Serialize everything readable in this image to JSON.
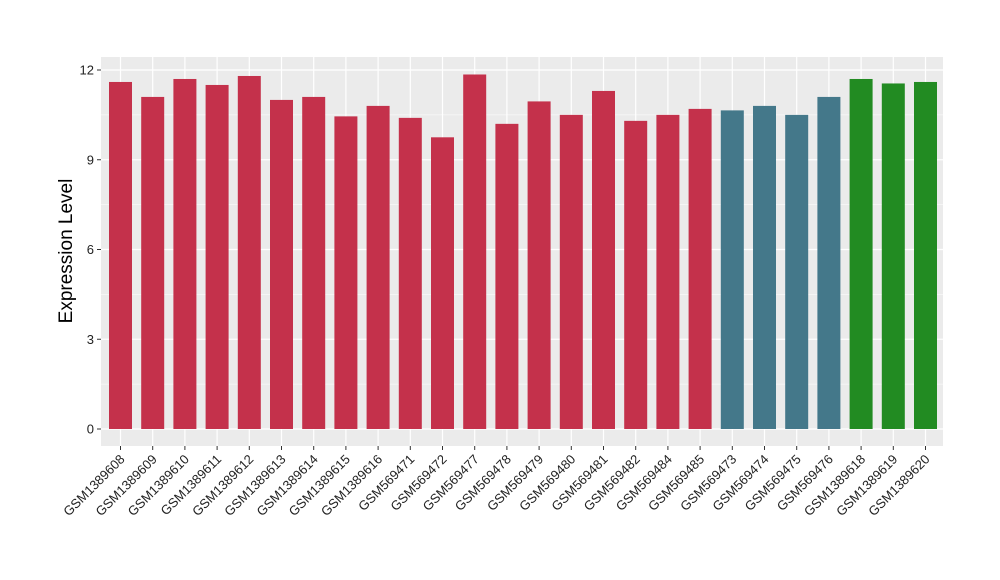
{
  "chart_data": {
    "type": "bar",
    "title": "",
    "xlabel": "",
    "ylabel": "Expression Level",
    "ylim": [
      0,
      12.6
    ],
    "yticks": [
      0,
      3,
      6,
      9,
      12
    ],
    "grid": true,
    "legend": "none",
    "categories": [
      "GSM1389608",
      "GSM1389609",
      "GSM1389610",
      "GSM1389611",
      "GSM1389612",
      "GSM1389613",
      "GSM1389614",
      "GSM1389615",
      "GSM1389616",
      "GSM569471",
      "GSM569472",
      "GSM569477",
      "GSM569478",
      "GSM569479",
      "GSM569480",
      "GSM569481",
      "GSM569482",
      "GSM569484",
      "GSM569485",
      "GSM569473",
      "GSM569474",
      "GSM569475",
      "GSM569476",
      "GSM1389618",
      "GSM1389619",
      "GSM1389620"
    ],
    "values": [
      11.6,
      11.1,
      11.7,
      11.5,
      11.8,
      11.0,
      11.1,
      10.45,
      10.8,
      10.4,
      9.75,
      11.85,
      10.2,
      10.95,
      10.5,
      11.3,
      10.3,
      10.5,
      10.7,
      10.65,
      10.8,
      10.5,
      11.1,
      11.7,
      11.55,
      11.6
    ],
    "bar_colors": [
      "#c4314b",
      "#c4314b",
      "#c4314b",
      "#c4314b",
      "#c4314b",
      "#c4314b",
      "#c4314b",
      "#c4314b",
      "#c4314b",
      "#c4314b",
      "#c4314b",
      "#c4314b",
      "#c4314b",
      "#c4314b",
      "#c4314b",
      "#c4314b",
      "#c4314b",
      "#c4314b",
      "#c4314b",
      "#44788a",
      "#44788a",
      "#44788a",
      "#44788a",
      "#228b22",
      "#228b22",
      "#228b22"
    ],
    "panel_background": "#ebebeb",
    "grid_color": "#ffffff"
  }
}
